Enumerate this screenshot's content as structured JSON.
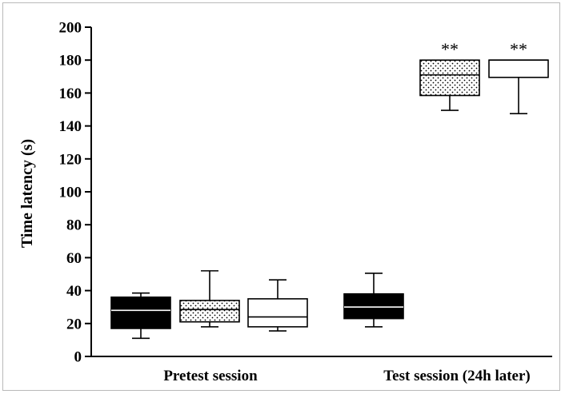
{
  "chart_data": {
    "type": "boxplot",
    "ylabel": "Time latency (s)",
    "xlabel": "",
    "title": "",
    "ylim": [
      0,
      200
    ],
    "yticks": [
      0,
      20,
      40,
      60,
      80,
      100,
      120,
      140,
      160,
      180,
      200
    ],
    "grid": false,
    "legend": "none",
    "categories": [
      "Pretest session",
      "Test session (24h later)"
    ],
    "boxes": [
      {
        "category": 0,
        "fill": "solid-black",
        "whisker_low": 11,
        "q1": 17,
        "median": 28,
        "q3": 36,
        "whisker_high": 38.5,
        "annotation": ""
      },
      {
        "category": 0,
        "fill": "dotted",
        "whisker_low": 18,
        "q1": 21,
        "median": 28.5,
        "q3": 34,
        "whisker_high": 52,
        "annotation": ""
      },
      {
        "category": 0,
        "fill": "white",
        "whisker_low": 15.5,
        "q1": 18,
        "median": 24,
        "q3": 35,
        "whisker_high": 46.5,
        "annotation": ""
      },
      {
        "category": 1,
        "fill": "solid-black",
        "whisker_low": 18,
        "q1": 23,
        "median": 30,
        "q3": 38,
        "whisker_high": 50.5,
        "annotation": ""
      },
      {
        "category": 1,
        "fill": "dotted",
        "whisker_low": 149.5,
        "q1": 158.5,
        "median": 171,
        "q3": 180,
        "whisker_high": 180,
        "annotation": "**"
      },
      {
        "category": 1,
        "fill": "white",
        "whisker_low": 147.5,
        "q1": 169.5,
        "median": 180,
        "q3": 180,
        "whisker_high": 180,
        "annotation": "**"
      }
    ]
  }
}
